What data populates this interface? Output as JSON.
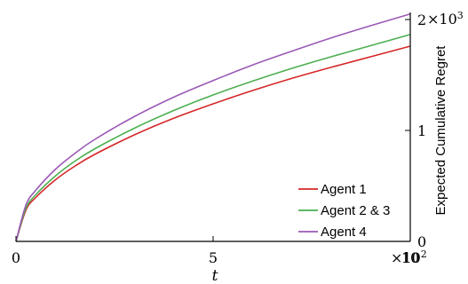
{
  "chart_data": {
    "type": "line",
    "title": "",
    "xlabel": "t",
    "ylabel": "Expected Cumulative Regret",
    "xlim": [
      0,
      1000
    ],
    "ylim": [
      0,
      2000
    ],
    "x_ticks": [
      {
        "value": 0,
        "label": "0"
      },
      {
        "value": 500,
        "label": "5"
      },
      {
        "value": 1000,
        "label": "10"
      }
    ],
    "x_multiplier": {
      "base": "×10",
      "exp": "2"
    },
    "y_ticks": [
      {
        "value": 0,
        "label": "0"
      },
      {
        "value": 1000,
        "label": "1"
      },
      {
        "value": 2000,
        "label": "2"
      }
    ],
    "y_multiplier": {
      "base": "×10",
      "exp": "3"
    },
    "y_axis_side": "right",
    "grid": false,
    "legend_position": "bottom-right",
    "x": [
      0,
      25,
      50,
      100,
      150,
      200,
      300,
      400,
      500,
      600,
      700,
      800,
      900,
      1000
    ],
    "series": [
      {
        "name": "Agent 1",
        "color": "#d62728",
        "values": [
          0,
          280,
          395,
          555,
          680,
          785,
          960,
          1110,
          1240,
          1360,
          1470,
          1570,
          1665,
          1760
        ]
      },
      {
        "name": "Agent 2 & 3",
        "color": "#4caf50",
        "values": [
          0,
          295,
          420,
          590,
          725,
          835,
          1020,
          1180,
          1320,
          1445,
          1560,
          1665,
          1765,
          1865
        ]
      },
      {
        "name": "Agent 4",
        "color": "#9b59b6",
        "values": [
          0,
          325,
          460,
          650,
          795,
          920,
          1125,
          1300,
          1450,
          1590,
          1715,
          1835,
          1945,
          2050
        ]
      }
    ]
  }
}
